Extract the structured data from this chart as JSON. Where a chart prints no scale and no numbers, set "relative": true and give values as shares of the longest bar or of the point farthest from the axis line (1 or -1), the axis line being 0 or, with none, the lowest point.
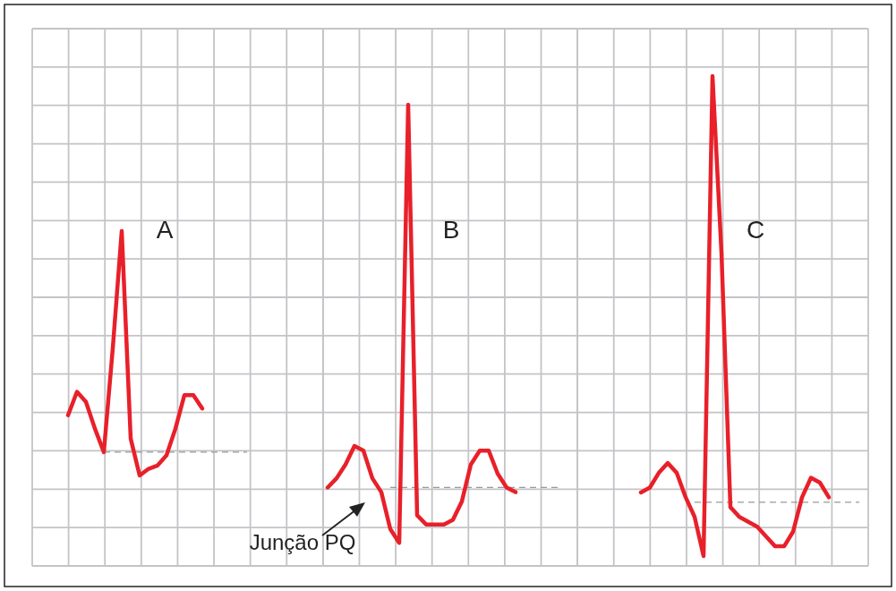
{
  "chart_data": [
    {
      "type": "line",
      "relative": true,
      "grid": true,
      "line_style": "solid",
      "marker": "none",
      "categories": [
        null,
        null,
        null,
        null,
        null,
        null,
        null,
        null,
        null,
        null,
        null,
        null,
        null,
        null,
        null,
        null
      ],
      "series": [
        {
          "color": "#e8202a",
          "values": [
            0.45,
            0.52,
            0.49,
            0.41,
            0.34,
            0.65,
            1,
            0.38,
            0.27,
            0.29,
            0.3,
            0.33,
            0.41,
            0.51,
            0.51,
            0.47
          ]
        }
      ],
      "ref_lines": [
        {
          "axis": "y",
          "value": 0.34,
          "color": "#999999",
          "line_style": "dashed"
        }
      ],
      "annotations": [
        "A"
      ]
    },
    {
      "type": "line",
      "relative": true,
      "grid": true,
      "line_style": "solid",
      "marker": "none",
      "categories": [
        null,
        null,
        null,
        null,
        null,
        null,
        null,
        null,
        null,
        null,
        null,
        null,
        null,
        null,
        null,
        null,
        null,
        null,
        null,
        null,
        null,
        null
      ],
      "series": [
        {
          "color": "#e8202a",
          "values": [
            0.17,
            0.19,
            0.22,
            0.26,
            0.25,
            0.19,
            0.16,
            0.08,
            0.05,
            1,
            0.11,
            0.09,
            0.09,
            0.09,
            0.1,
            0.14,
            0.22,
            0.25,
            0.25,
            0.2,
            0.17,
            0.16
          ]
        }
      ],
      "ref_lines": [
        {
          "axis": "y",
          "value": 0.17,
          "color": "#999999",
          "line_style": "dashed"
        }
      ],
      "annotations": [
        "B",
        "Junção PQ"
      ]
    },
    {
      "type": "line",
      "relative": true,
      "grid": true,
      "line_style": "solid",
      "marker": "none",
      "categories": [
        null,
        null,
        null,
        null,
        null,
        null,
        null,
        null,
        null,
        null,
        null,
        null,
        null,
        null,
        null,
        null,
        null,
        null,
        null,
        null,
        null,
        null
      ],
      "series": [
        {
          "color": "#e8202a",
          "values": [
            0.15,
            0.16,
            0.19,
            0.21,
            0.19,
            0.14,
            0.1,
            0.02,
            1,
            0.64,
            0.12,
            0.1,
            0.09,
            0.08,
            0.06,
            0.04,
            0.04,
            0.07,
            0.14,
            0.18,
            0.17,
            0.14
          ]
        }
      ],
      "ref_lines": [
        {
          "axis": "y",
          "value": 0.13,
          "color": "#999999",
          "line_style": "dashed"
        }
      ],
      "annotations": [
        "C"
      ]
    }
  ]
}
